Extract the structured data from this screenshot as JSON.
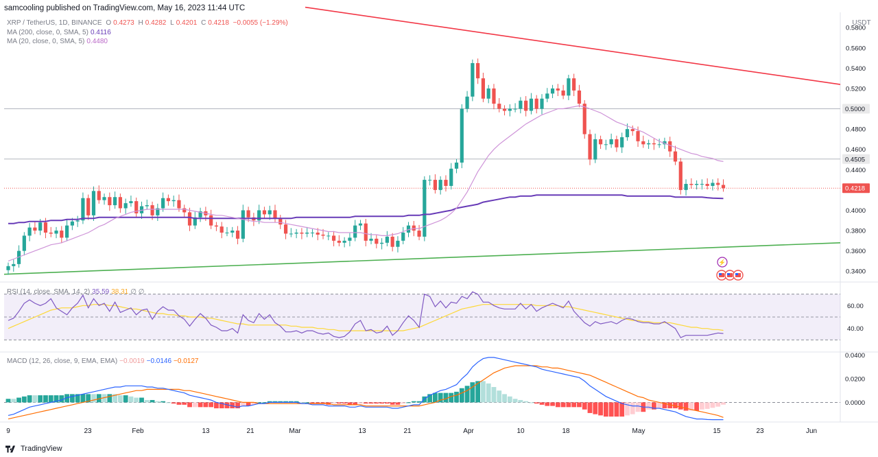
{
  "header": {
    "publisher": "samcooling published on TradingView.com, May 16, 2023 11:44 UTC"
  },
  "legend": {
    "symbol": "XRP / TetherUS, 1D, BINANCE",
    "o_label": "O",
    "o": "0.4273",
    "h_label": "H",
    "h": "0.4282",
    "l_label": "L",
    "l": "0.4201",
    "c_label": "C",
    "c": "0.4218",
    "change": "−0.0055 (−1.29%)",
    "ma200": "MA (200, close, 0, SMA, 5)",
    "ma200_val": "0.4116",
    "ma20": "MA (20, close, 0, SMA, 5)",
    "ma20_val": "0.4480",
    "rsi": "RSI (14, close, SMA, 14, 2)",
    "rsi_val": "35.59",
    "rsi_ma_val": "38.31",
    "rsi_extra": "∅ ∅",
    "macd": "MACD (12, 26, close, 9, EMA, EMA)",
    "macd_hist": "−0.0019",
    "macd_line": "−0.0146",
    "macd_signal": "−0.0127"
  },
  "footer": {
    "brand": "TradingView"
  },
  "colors": {
    "up": "#26a69a",
    "down": "#ef5350",
    "ma200": "#673ab7",
    "ma20": "#ce93d8",
    "resistance": "#f23645",
    "support": "#4caf50",
    "rsi": "#7e57c2",
    "rsi_ma": "#fdd835",
    "macd": "#2962ff",
    "signal": "#ff6d00"
  },
  "chart_data": {
    "type": "candlestick",
    "title": "XRP / TetherUS, 1D, BINANCE",
    "currency": "USDT",
    "y_ticks": [
      "0.5800",
      "0.5600",
      "0.5400",
      "0.5200",
      "0.4800",
      "0.4600",
      "0.4400",
      "0.4000",
      "0.3800",
      "0.3600",
      "0.3400"
    ],
    "ylim": [
      0.33,
      0.595
    ],
    "highlight_levels": [
      {
        "label": "0.5000",
        "value": 0.5,
        "style": "dark"
      },
      {
        "label": "0.4505",
        "value": 0.4505,
        "style": "dark"
      },
      {
        "label": "0.4218",
        "value": 0.4218,
        "style": "red"
      }
    ],
    "x_labels": [
      "9",
      "23",
      "Feb",
      "13",
      "21",
      "Mar",
      "13",
      "21",
      "Apr",
      "10",
      "18",
      "May",
      "15",
      "23",
      "Jun"
    ],
    "close": [
      0.345,
      0.347,
      0.36,
      0.375,
      0.383,
      0.38,
      0.388,
      0.378,
      0.377,
      0.38,
      0.373,
      0.385,
      0.389,
      0.39,
      0.412,
      0.395,
      0.419,
      0.41,
      0.413,
      0.405,
      0.413,
      0.402,
      0.407,
      0.409,
      0.397,
      0.404,
      0.405,
      0.395,
      0.402,
      0.412,
      0.409,
      0.41,
      0.402,
      0.398,
      0.385,
      0.393,
      0.399,
      0.395,
      0.385,
      0.384,
      0.378,
      0.378,
      0.38,
      0.372,
      0.4,
      0.393,
      0.39,
      0.4,
      0.396,
      0.4,
      0.392,
      0.386,
      0.377,
      0.377,
      0.378,
      0.377,
      0.378,
      0.378,
      0.376,
      0.375,
      0.375,
      0.37,
      0.368,
      0.37,
      0.373,
      0.385,
      0.387,
      0.37,
      0.372,
      0.367,
      0.368,
      0.374,
      0.364,
      0.37,
      0.378,
      0.385,
      0.38,
      0.374,
      0.43,
      0.43,
      0.42,
      0.43,
      0.424,
      0.441,
      0.447,
      0.5,
      0.512,
      0.545,
      0.53,
      0.51,
      0.52,
      0.505,
      0.5,
      0.498,
      0.5,
      0.5,
      0.508,
      0.498,
      0.51,
      0.5,
      0.51,
      0.515,
      0.52,
      0.518,
      0.513,
      0.53,
      0.518,
      0.505,
      0.475,
      0.45,
      0.47,
      0.465,
      0.465,
      0.47,
      0.462,
      0.472,
      0.48,
      0.478,
      0.468,
      0.465,
      0.466,
      0.465,
      0.465,
      0.468,
      0.458,
      0.448,
      0.42,
      0.426,
      0.425,
      0.426,
      0.426,
      0.424,
      0.427,
      0.425,
      0.4218
    ],
    "ma200": [
      0.387,
      0.387,
      0.388,
      0.388,
      0.389,
      0.389,
      0.389,
      0.389,
      0.39,
      0.39,
      0.39,
      0.391,
      0.391,
      0.391,
      0.392,
      0.392,
      0.392,
      0.393,
      0.393,
      0.393,
      0.393,
      0.393,
      0.393,
      0.393,
      0.393,
      0.393,
      0.393,
      0.393,
      0.393,
      0.393,
      0.393,
      0.393,
      0.393,
      0.393,
      0.393,
      0.392,
      0.392,
      0.392,
      0.392,
      0.392,
      0.392,
      0.392,
      0.392,
      0.392,
      0.392,
      0.392,
      0.392,
      0.392,
      0.392,
      0.392,
      0.392,
      0.392,
      0.392,
      0.392,
      0.393,
      0.393,
      0.393,
      0.393,
      0.393,
      0.393,
      0.393,
      0.393,
      0.393,
      0.393,
      0.393,
      0.394,
      0.394,
      0.394,
      0.394,
      0.394,
      0.394,
      0.394,
      0.394,
      0.394,
      0.394,
      0.395,
      0.395,
      0.395,
      0.396,
      0.396,
      0.397,
      0.398,
      0.399,
      0.4,
      0.402,
      0.403,
      0.404,
      0.405,
      0.406,
      0.408,
      0.409,
      0.41,
      0.411,
      0.412,
      0.413,
      0.413,
      0.414,
      0.414,
      0.414,
      0.415,
      0.415,
      0.415,
      0.415,
      0.415,
      0.415,
      0.415,
      0.415,
      0.415,
      0.415,
      0.415,
      0.415,
      0.415,
      0.415,
      0.415,
      0.415,
      0.415,
      0.414,
      0.414,
      0.414,
      0.414,
      0.414,
      0.414,
      0.414,
      0.414,
      0.414,
      0.413,
      0.413,
      0.413,
      0.413,
      0.413,
      0.413,
      0.4124,
      0.412,
      0.4118,
      0.4116
    ],
    "ma20": [
      0.35,
      0.352,
      0.354,
      0.356,
      0.358,
      0.36,
      0.362,
      0.364,
      0.366,
      0.367,
      0.368,
      0.37,
      0.372,
      0.374,
      0.376,
      0.378,
      0.381,
      0.384,
      0.386,
      0.389,
      0.392,
      0.394,
      0.396,
      0.398,
      0.399,
      0.4,
      0.401,
      0.401,
      0.401,
      0.401,
      0.401,
      0.401,
      0.401,
      0.401,
      0.4,
      0.399,
      0.398,
      0.397,
      0.396,
      0.395,
      0.395,
      0.394,
      0.393,
      0.392,
      0.391,
      0.39,
      0.389,
      0.389,
      0.388,
      0.388,
      0.388,
      0.388,
      0.387,
      0.386,
      0.385,
      0.384,
      0.383,
      0.382,
      0.381,
      0.38,
      0.379,
      0.379,
      0.378,
      0.378,
      0.378,
      0.378,
      0.378,
      0.377,
      0.376,
      0.376,
      0.375,
      0.375,
      0.376,
      0.377,
      0.379,
      0.381,
      0.382,
      0.382,
      0.384,
      0.386,
      0.388,
      0.39,
      0.393,
      0.397,
      0.402,
      0.41,
      0.418,
      0.428,
      0.438,
      0.446,
      0.454,
      0.46,
      0.465,
      0.469,
      0.473,
      0.477,
      0.481,
      0.485,
      0.488,
      0.491,
      0.494,
      0.496,
      0.498,
      0.5,
      0.5,
      0.501,
      0.502,
      0.503,
      0.502,
      0.5,
      0.498,
      0.496,
      0.493,
      0.49,
      0.487,
      0.485,
      0.483,
      0.481,
      0.479,
      0.477,
      0.474,
      0.471,
      0.468,
      0.466,
      0.464,
      0.462,
      0.46,
      0.458,
      0.456,
      0.455,
      0.453,
      0.452,
      0.451,
      0.449,
      0.448
    ],
    "resistance_line": {
      "start_value": 0.6,
      "end_value": 0.524
    },
    "support_line": {
      "start_value": 0.337,
      "end_value": 0.368
    },
    "rsi": {
      "title": "RSI (14, close, SMA, 14, 2)",
      "y_ticks": [
        "60.00",
        "40.00"
      ],
      "ylim": [
        20,
        80
      ],
      "band": [
        30,
        70
      ],
      "values": [
        47,
        49,
        55,
        62,
        65,
        62,
        60,
        62,
        66,
        58,
        55,
        52,
        58,
        62,
        69,
        58,
        66,
        60,
        62,
        55,
        63,
        54,
        56,
        58,
        52,
        56,
        57,
        48,
        55,
        59,
        56,
        56,
        51,
        48,
        42,
        48,
        53,
        49,
        43,
        41,
        38,
        38,
        40,
        36,
        52,
        47,
        45,
        53,
        48,
        52,
        45,
        42,
        37,
        37,
        38,
        36,
        38,
        38,
        36,
        35,
        36,
        33,
        32,
        33,
        37,
        44,
        47,
        38,
        39,
        36,
        37,
        42,
        34,
        38,
        45,
        51,
        47,
        41,
        70,
        68,
        59,
        64,
        58,
        63,
        62,
        68,
        66,
        72,
        70,
        63,
        63,
        60,
        58,
        57,
        57,
        57,
        62,
        57,
        61,
        55,
        58,
        60,
        62,
        60,
        58,
        64,
        55,
        50,
        45,
        42,
        46,
        44,
        45,
        46,
        44,
        47,
        49,
        48,
        46,
        45,
        45,
        44,
        44,
        46,
        43,
        40,
        32,
        34,
        34,
        34,
        34,
        34,
        35,
        36,
        35.59
      ],
      "ma": [
        40,
        42,
        44,
        46,
        48,
        50,
        52,
        54,
        56,
        57,
        58,
        58,
        58,
        59,
        60,
        60,
        61,
        61,
        61,
        60,
        60,
        59,
        58,
        57,
        57,
        56,
        55,
        54,
        53,
        53,
        52,
        52,
        51,
        51,
        50,
        50,
        50,
        49,
        49,
        48,
        47,
        46,
        45,
        44,
        44,
        43,
        43,
        43,
        43,
        43,
        43,
        43,
        43,
        42,
        42,
        41,
        41,
        41,
        40,
        40,
        39,
        39,
        38,
        38,
        38,
        38,
        38,
        38,
        38,
        38,
        38,
        38,
        38,
        38,
        38,
        39,
        40,
        41,
        43,
        45,
        47,
        49,
        51,
        53,
        55,
        57,
        58,
        59,
        60,
        61,
        61,
        61,
        61,
        61,
        61,
        61,
        61,
        61,
        61,
        60,
        60,
        60,
        60,
        60,
        59,
        59,
        58,
        57,
        56,
        55,
        54,
        53,
        52,
        51,
        50,
        49,
        48,
        47,
        47,
        46,
        46,
        45,
        45,
        45,
        45,
        44,
        43,
        42,
        41,
        41,
        40,
        40,
        39,
        39,
        38.31
      ]
    },
    "macd": {
      "title": "MACD (12, 26, close, 9, EMA, EMA)",
      "y_ticks": [
        "0.0400",
        "0.0200",
        "0.0000"
      ],
      "ylim": [
        -0.016,
        0.042
      ],
      "macd_line": [
        -0.011,
        -0.01,
        -0.008,
        -0.006,
        -0.004,
        -0.003,
        -0.002,
        -0.001,
        0.0,
        0.001,
        0.002,
        0.004,
        0.005,
        0.006,
        0.007,
        0.008,
        0.009,
        0.01,
        0.011,
        0.012,
        0.013,
        0.013,
        0.014,
        0.014,
        0.014,
        0.014,
        0.013,
        0.013,
        0.012,
        0.012,
        0.011,
        0.01,
        0.009,
        0.008,
        0.006,
        0.005,
        0.004,
        0.003,
        0.002,
        0.0,
        -0.001,
        -0.002,
        -0.003,
        -0.004,
        -0.003,
        -0.003,
        -0.002,
        -0.001,
        -0.001,
        0.0,
        0.0,
        0.0,
        0.0,
        0.0,
        0.0,
        -0.001,
        -0.001,
        -0.002,
        -0.002,
        -0.002,
        -0.003,
        -0.003,
        -0.003,
        -0.003,
        -0.004,
        -0.004,
        -0.003,
        -0.004,
        -0.004,
        -0.004,
        -0.004,
        -0.004,
        -0.005,
        -0.005,
        -0.004,
        -0.003,
        -0.002,
        -0.002,
        0.003,
        0.006,
        0.008,
        0.01,
        0.011,
        0.013,
        0.015,
        0.02,
        0.024,
        0.03,
        0.034,
        0.037,
        0.038,
        0.038,
        0.037,
        0.036,
        0.035,
        0.034,
        0.033,
        0.032,
        0.031,
        0.03,
        0.028,
        0.027,
        0.026,
        0.025,
        0.024,
        0.023,
        0.022,
        0.021,
        0.018,
        0.014,
        0.011,
        0.008,
        0.005,
        0.003,
        0.001,
        -0.001,
        -0.002,
        -0.003,
        -0.003,
        -0.004,
        -0.004,
        -0.005,
        -0.005,
        -0.006,
        -0.007,
        -0.008,
        -0.01,
        -0.012,
        -0.013,
        -0.014,
        -0.014,
        -0.0145,
        -0.0146,
        -0.0146,
        -0.0146
      ],
      "signal_line": [
        -0.014,
        -0.013,
        -0.012,
        -0.011,
        -0.01,
        -0.009,
        -0.008,
        -0.007,
        -0.006,
        -0.005,
        -0.004,
        -0.003,
        -0.002,
        -0.001,
        0.0,
        0.001,
        0.002,
        0.003,
        0.004,
        0.005,
        0.006,
        0.007,
        0.008,
        0.009,
        0.01,
        0.01,
        0.011,
        0.011,
        0.011,
        0.011,
        0.011,
        0.011,
        0.011,
        0.01,
        0.01,
        0.009,
        0.008,
        0.007,
        0.006,
        0.005,
        0.004,
        0.003,
        0.002,
        0.001,
        0.0,
        0.0,
        0.0,
        -0.001,
        -0.001,
        -0.001,
        -0.001,
        -0.001,
        -0.001,
        -0.001,
        -0.001,
        -0.001,
        -0.001,
        -0.001,
        -0.001,
        -0.001,
        -0.001,
        -0.002,
        -0.002,
        -0.002,
        -0.002,
        -0.002,
        -0.002,
        -0.003,
        -0.003,
        -0.003,
        -0.003,
        -0.003,
        -0.003,
        -0.003,
        -0.003,
        -0.003,
        -0.003,
        -0.003,
        -0.002,
        -0.001,
        0.0,
        0.002,
        0.003,
        0.005,
        0.006,
        0.008,
        0.01,
        0.013,
        0.016,
        0.019,
        0.022,
        0.025,
        0.027,
        0.029,
        0.03,
        0.031,
        0.031,
        0.031,
        0.031,
        0.031,
        0.03,
        0.03,
        0.029,
        0.029,
        0.028,
        0.027,
        0.026,
        0.025,
        0.024,
        0.023,
        0.021,
        0.019,
        0.017,
        0.015,
        0.013,
        0.011,
        0.009,
        0.007,
        0.005,
        0.004,
        0.002,
        0.001,
        0.0,
        -0.001,
        -0.002,
        -0.003,
        -0.004,
        -0.005,
        -0.006,
        -0.007,
        -0.008,
        -0.009,
        -0.01,
        -0.011,
        -0.0127
      ]
    },
    "events": [
      "lightning",
      "flag",
      "flag",
      "flag"
    ]
  }
}
